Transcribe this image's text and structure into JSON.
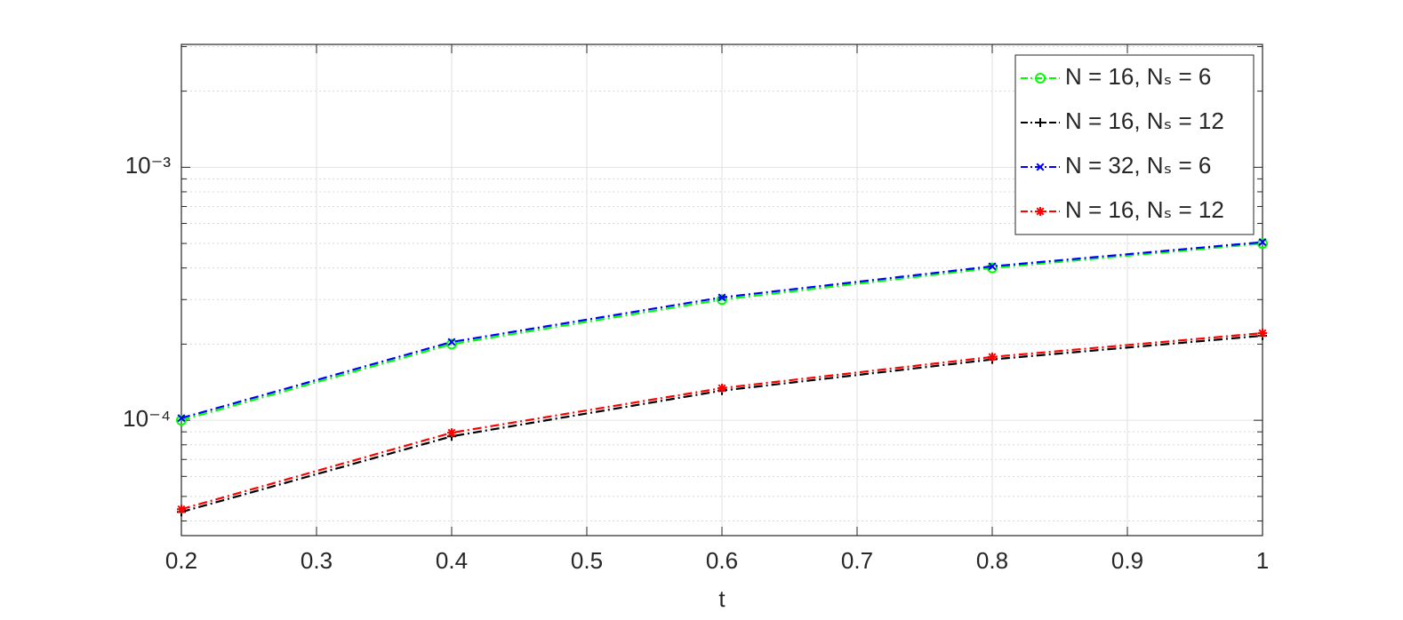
{
  "chart_data": {
    "type": "line",
    "xlabel": "t",
    "x": [
      0.2,
      0.4,
      0.6,
      0.8,
      1
    ],
    "series": [
      {
        "name": "N = 16, Nₛ = 6",
        "color": "#00ff00",
        "marker": "circle",
        "values": [
          0.0001,
          0.0002,
          0.0003,
          0.0004,
          0.0005
        ]
      },
      {
        "name": "N = 16, Nₛ = 12",
        "color": "#000000",
        "marker": "plus",
        "values": [
          4.34e-05,
          8.64e-05,
          0.000131,
          0.000174,
          0.000216
        ]
      },
      {
        "name": "N = 32, Nₛ = 6",
        "color": "#0000ff",
        "marker": "cross",
        "values": [
          0.000102,
          0.000204,
          0.000306,
          0.000406,
          0.000506
        ]
      },
      {
        "name": "N = 16, Nₛ = 12",
        "color": "#ff0000",
        "marker": "star",
        "values": [
          4.45e-05,
          8.93e-05,
          0.000134,
          0.000178,
          0.000221
        ]
      }
    ],
    "xlim": [
      0.2,
      1
    ],
    "xticks": [
      0.2,
      0.3,
      0.4,
      0.5,
      0.6,
      0.7,
      0.8,
      0.9,
      1
    ],
    "ylim": [
      3.5e-05,
      0.00306
    ],
    "ylog": true,
    "yticks": [
      {
        "value": 0.0001,
        "label": "10⁻⁴"
      },
      {
        "value": 0.001,
        "label": "10⁻³"
      }
    ],
    "yminorticks": [
      4e-05,
      5e-05,
      6e-05,
      7e-05,
      8e-05,
      9e-05,
      0.0002,
      0.0003,
      0.0004,
      0.0005,
      0.0006,
      0.0007,
      0.0008,
      0.0009,
      0.002,
      0.003
    ],
    "grid": true,
    "legend": "upper right"
  }
}
